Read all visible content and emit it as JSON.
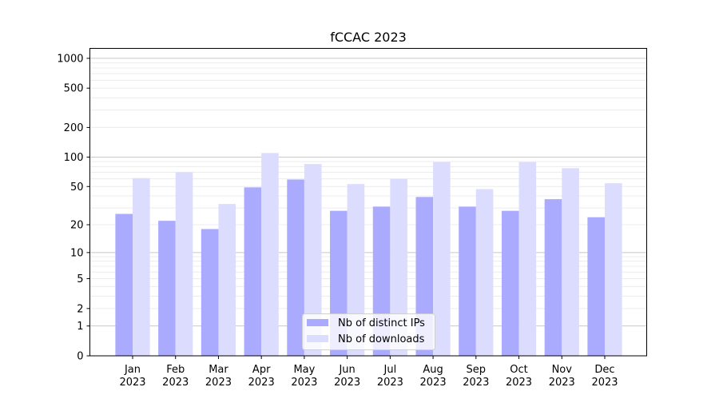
{
  "chart_data": {
    "type": "bar",
    "title": "fCCAC 2023",
    "xlabel": "",
    "ylabel": "",
    "yscale": "log10(1+y)",
    "ylim": [
      0,
      1260
    ],
    "yticks": [
      0,
      1,
      2,
      5,
      10,
      20,
      50,
      100,
      200,
      500,
      1000
    ],
    "grid": "on (major and minor horizontal)",
    "legend_placement": "lower center",
    "categories": [
      "Jan\n2023",
      "Feb\n2023",
      "Mar\n2023",
      "Apr\n2023",
      "May\n2023",
      "Jun\n2023",
      "Jul\n2023",
      "Aug\n2023",
      "Sep\n2023",
      "Oct\n2023",
      "Nov\n2023",
      "Dec\n2023"
    ],
    "series": [
      {
        "name": "Nb of distinct IPs",
        "color": "#aaaaff",
        "values": [
          26,
          22,
          18,
          49,
          59,
          28,
          31,
          39,
          31,
          28,
          37,
          24
        ]
      },
      {
        "name": "Nb of downloads",
        "color": "#dcdcfe",
        "values": [
          61,
          70,
          33,
          110,
          85,
          53,
          60,
          89,
          47,
          89,
          77,
          54
        ]
      }
    ]
  }
}
